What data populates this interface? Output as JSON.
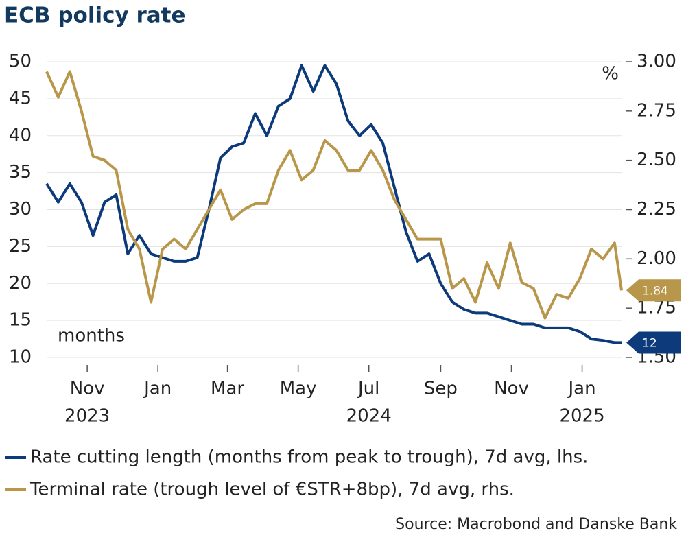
{
  "chart_data": {
    "type": "line",
    "title": "ECB policy rate",
    "y_label": "months",
    "y2_label": "%",
    "source": "Source: Macrobond and Danske Bank",
    "x": [
      "2023-09-27",
      "2023-10-07",
      "2023-10-17",
      "2023-10-27",
      "2023-11-06",
      "2023-11-16",
      "2023-11-26",
      "2023-12-06",
      "2023-12-16",
      "2023-12-26",
      "2024-01-05",
      "2024-01-15",
      "2024-01-25",
      "2024-02-04",
      "2024-02-14",
      "2024-02-24",
      "2024-03-05",
      "2024-03-15",
      "2024-03-25",
      "2024-04-04",
      "2024-04-14",
      "2024-04-24",
      "2024-05-04",
      "2024-05-14",
      "2024-05-24",
      "2024-06-03",
      "2024-06-13",
      "2024-06-23",
      "2024-07-03",
      "2024-07-13",
      "2024-07-23",
      "2024-08-02",
      "2024-08-12",
      "2024-08-22",
      "2024-09-01",
      "2024-09-11",
      "2024-09-21",
      "2024-10-01",
      "2024-10-11",
      "2024-10-21",
      "2024-10-31",
      "2024-11-10",
      "2024-11-20",
      "2024-11-30",
      "2024-12-10",
      "2024-12-20",
      "2024-12-30",
      "2025-01-09",
      "2025-01-19",
      "2025-01-29",
      "2025-02-04"
    ],
    "xlim": [
      "2023-09-27",
      "2025-02-04"
    ],
    "xticks": [
      {
        "value": "2023-11-01",
        "label": "Nov"
      },
      {
        "value": "2024-01-01",
        "label": "Jan"
      },
      {
        "value": "2024-03-01",
        "label": "Mar"
      },
      {
        "value": "2024-05-01",
        "label": "May"
      },
      {
        "value": "2024-07-01",
        "label": "Jul"
      },
      {
        "value": "2024-09-01",
        "label": "Sep"
      },
      {
        "value": "2024-11-01",
        "label": "Nov"
      },
      {
        "value": "2025-01-01",
        "label": "Jan"
      }
    ],
    "x_year_labels": [
      {
        "value": "2023-11-01",
        "label": "2023"
      },
      {
        "value": "2024-07-01",
        "label": "2024"
      },
      {
        "value": "2025-01-01",
        "label": "2025"
      }
    ],
    "ylim": [
      10,
      50
    ],
    "yticks": [
      10,
      15,
      20,
      25,
      30,
      35,
      40,
      45,
      50
    ],
    "y2lim": [
      1.5,
      3.0
    ],
    "y2ticks": [
      {
        "value": 1.5,
        "label": "1.50"
      },
      {
        "value": 1.75,
        "label": "1.75"
      },
      {
        "value": 2.0,
        "label": "2.00"
      },
      {
        "value": 2.25,
        "label": "2.25"
      },
      {
        "value": 2.5,
        "label": "2.50"
      },
      {
        "value": 2.75,
        "label": "2.75"
      },
      {
        "value": 3.0,
        "label": "3.00"
      }
    ],
    "grid": true,
    "series": [
      {
        "name": "Rate cutting length (months from peak to trough), 7d avg, lhs.",
        "color": "#0d3a7a",
        "axis": "y",
        "values": [
          33.5,
          31,
          33.5,
          31,
          26.5,
          31,
          32,
          24,
          26.5,
          24,
          23.5,
          23,
          23,
          23.5,
          30,
          37,
          38.5,
          39,
          43,
          40,
          44,
          45,
          49.5,
          46,
          49.5,
          47,
          42,
          40,
          41.5,
          39,
          33,
          27,
          23,
          24,
          20,
          17.5,
          16.5,
          16,
          16,
          15.5,
          15,
          14.5,
          14.5,
          14,
          14,
          14,
          13.5,
          12.5,
          12.3,
          12,
          12
        ]
      },
      {
        "name": "Terminal rate (trough level of €STR+8bp), 7d avg, rhs.",
        "color": "#b8964a",
        "axis": "y2",
        "values": [
          2.95,
          2.82,
          2.95,
          2.75,
          2.52,
          2.5,
          2.45,
          2.15,
          2.05,
          1.78,
          2.05,
          2.1,
          2.05,
          2.15,
          2.25,
          2.35,
          2.2,
          2.25,
          2.28,
          2.28,
          2.45,
          2.55,
          2.4,
          2.45,
          2.6,
          2.55,
          2.45,
          2.45,
          2.55,
          2.45,
          2.3,
          2.2,
          2.1,
          2.1,
          2.1,
          1.85,
          1.9,
          1.78,
          1.98,
          1.85,
          2.08,
          1.88,
          1.85,
          1.7,
          1.82,
          1.8,
          1.9,
          2.05,
          2.0,
          2.08,
          1.84
        ]
      }
    ]
  }
}
